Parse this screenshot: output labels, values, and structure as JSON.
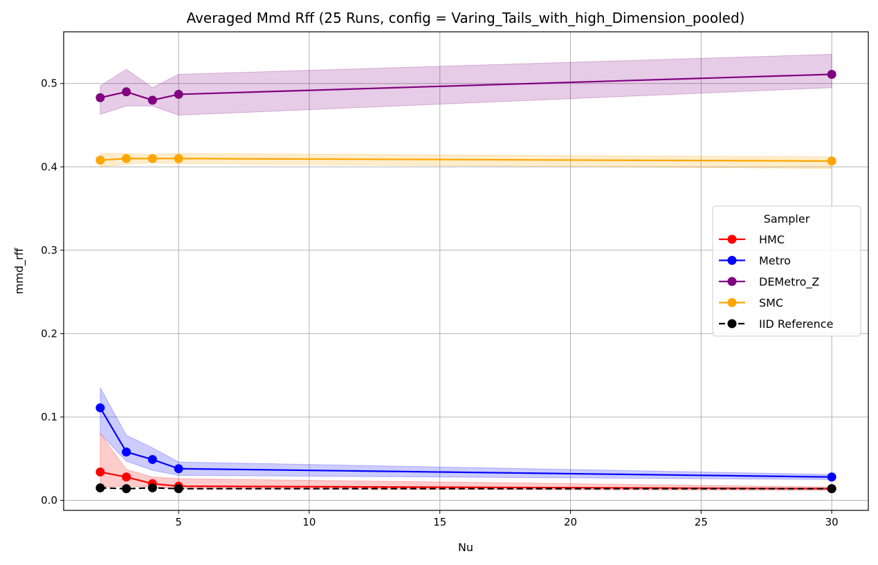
{
  "chart_data": {
    "type": "line",
    "title": "Averaged Mmd Rff (25 Runs, config = Varing_Tails_with_high_Dimension_pooled)",
    "xlabel": "Nu",
    "ylabel": "mmd_rff",
    "xlim": [
      0.6,
      31.4
    ],
    "ylim": [
      -0.012,
      0.562
    ],
    "xticks": [
      5,
      10,
      15,
      20,
      25,
      30
    ],
    "xtick_labels": [
      "5",
      "10",
      "15",
      "20",
      "25",
      "30"
    ],
    "yticks": [
      0.0,
      0.1,
      0.2,
      0.3,
      0.4,
      0.5
    ],
    "ytick_labels": [
      "0.0",
      "0.1",
      "0.2",
      "0.3",
      "0.4",
      "0.5"
    ],
    "grid": true,
    "legend": {
      "title": "Sampler",
      "placement": "center-right"
    },
    "x": [
      2,
      3,
      4,
      5,
      30
    ],
    "series": [
      {
        "name": "HMC",
        "color": "#ff0000",
        "dashed": false,
        "values": [
          0.034,
          0.028,
          0.02,
          0.017,
          0.014
        ],
        "lower": [
          0.016,
          0.017,
          0.016,
          0.014,
          0.012
        ],
        "upper": [
          0.08,
          0.037,
          0.028,
          0.026,
          0.016
        ]
      },
      {
        "name": "Metro",
        "color": "#0000ff",
        "dashed": false,
        "values": [
          0.111,
          0.058,
          0.049,
          0.038,
          0.028
        ],
        "lower": [
          0.08,
          0.047,
          0.036,
          0.03,
          0.025
        ],
        "upper": [
          0.135,
          0.078,
          0.063,
          0.046,
          0.031
        ]
      },
      {
        "name": "DEMetro_Z",
        "color": "#800080",
        "dashed": false,
        "values": [
          0.483,
          0.49,
          0.48,
          0.487,
          0.511
        ],
        "lower": [
          0.463,
          0.473,
          0.473,
          0.462,
          0.495
        ],
        "upper": [
          0.497,
          0.517,
          0.495,
          0.511,
          0.535
        ]
      },
      {
        "name": "SMC",
        "color": "#ffa500",
        "dashed": false,
        "values": [
          0.408,
          0.41,
          0.41,
          0.41,
          0.407
        ],
        "lower": [
          0.4,
          0.403,
          0.405,
          0.404,
          0.398
        ],
        "upper": [
          0.416,
          0.416,
          0.415,
          0.416,
          0.412
        ]
      },
      {
        "name": "IID Reference",
        "color": "#000000",
        "dashed": true,
        "values": [
          0.015,
          0.014,
          0.015,
          0.014,
          0.014
        ]
      }
    ]
  }
}
